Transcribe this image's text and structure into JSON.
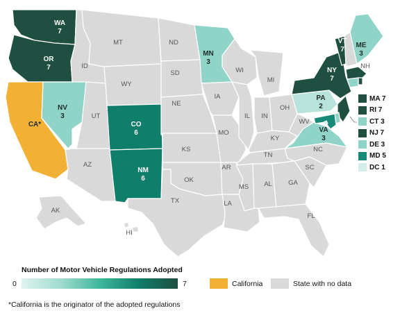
{
  "map": {
    "states": [
      {
        "id": "WA",
        "label": "WA",
        "value": 7,
        "status": "data"
      },
      {
        "id": "OR",
        "label": "OR",
        "value": 7,
        "status": "data"
      },
      {
        "id": "CA",
        "label": "CA*",
        "value": null,
        "status": "california"
      },
      {
        "id": "NV",
        "label": "NV",
        "value": 3,
        "status": "data"
      },
      {
        "id": "CO",
        "label": "CO",
        "value": 6,
        "status": "data"
      },
      {
        "id": "NM",
        "label": "NM",
        "value": 6,
        "status": "data"
      },
      {
        "id": "MN",
        "label": "MN",
        "value": 3,
        "status": "data"
      },
      {
        "id": "ME",
        "label": "ME",
        "value": 3,
        "status": "data"
      },
      {
        "id": "VT",
        "label": "VT",
        "value": 7,
        "status": "data"
      },
      {
        "id": "NY",
        "label": "NY",
        "value": 7,
        "status": "data"
      },
      {
        "id": "PA",
        "label": "PA",
        "value": 2,
        "status": "data"
      },
      {
        "id": "VA",
        "label": "VA",
        "value": 3,
        "status": "data"
      },
      {
        "id": "MA",
        "label": "MA",
        "value": 7,
        "status": "data"
      },
      {
        "id": "RI",
        "label": "RI",
        "value": 7,
        "status": "data"
      },
      {
        "id": "CT",
        "label": "CT",
        "value": 3,
        "status": "data"
      },
      {
        "id": "NJ",
        "label": "NJ",
        "value": 7,
        "status": "data"
      },
      {
        "id": "DE",
        "label": "DE",
        "value": 3,
        "status": "data"
      },
      {
        "id": "MD",
        "label": "MD",
        "value": 5,
        "status": "data"
      },
      {
        "id": "DC",
        "label": "DC",
        "value": 1,
        "status": "data"
      }
    ],
    "nodata_labels": [
      "ID",
      "MT",
      "ND",
      "SD",
      "WY",
      "UT",
      "AZ",
      "NE",
      "KS",
      "OK",
      "TX",
      "IA",
      "MO",
      "AR",
      "LA",
      "WI",
      "IL",
      "MI",
      "IN",
      "OH",
      "KY",
      "TN",
      "MS",
      "AL",
      "GA",
      "SC",
      "NC",
      "WV",
      "FL",
      "NH",
      "AK",
      "HI"
    ]
  },
  "side_legend": [
    {
      "state": "MA",
      "value": 7,
      "text": "MA 7"
    },
    {
      "state": "RI",
      "value": 7,
      "text": "RI 7"
    },
    {
      "state": "CT",
      "value": 3,
      "text": "CT 3"
    },
    {
      "state": "NJ",
      "value": 7,
      "text": "NJ 7"
    },
    {
      "state": "DE",
      "value": 3,
      "text": "DE 3"
    },
    {
      "state": "MD",
      "value": 5,
      "text": "MD 5"
    },
    {
      "state": "DC",
      "value": 1,
      "text": "DC 1"
    }
  ],
  "legend": {
    "title": "Number of Motor Vehicle Regulations Adopted",
    "min_label": "0",
    "max_label": "7",
    "california_label": "California",
    "nodata_label": "State with no data"
  },
  "footnote": "*California is the originator of the adopted regulations",
  "colors": {
    "v7": "#1e4f40",
    "v6": "#0f7e6a",
    "v5": "#178b77",
    "v3": "#8fd4c6",
    "v2": "#b7e3da",
    "v1": "#d3eeea",
    "california": "#f2b134",
    "nodata": "#d9d9d9"
  }
}
